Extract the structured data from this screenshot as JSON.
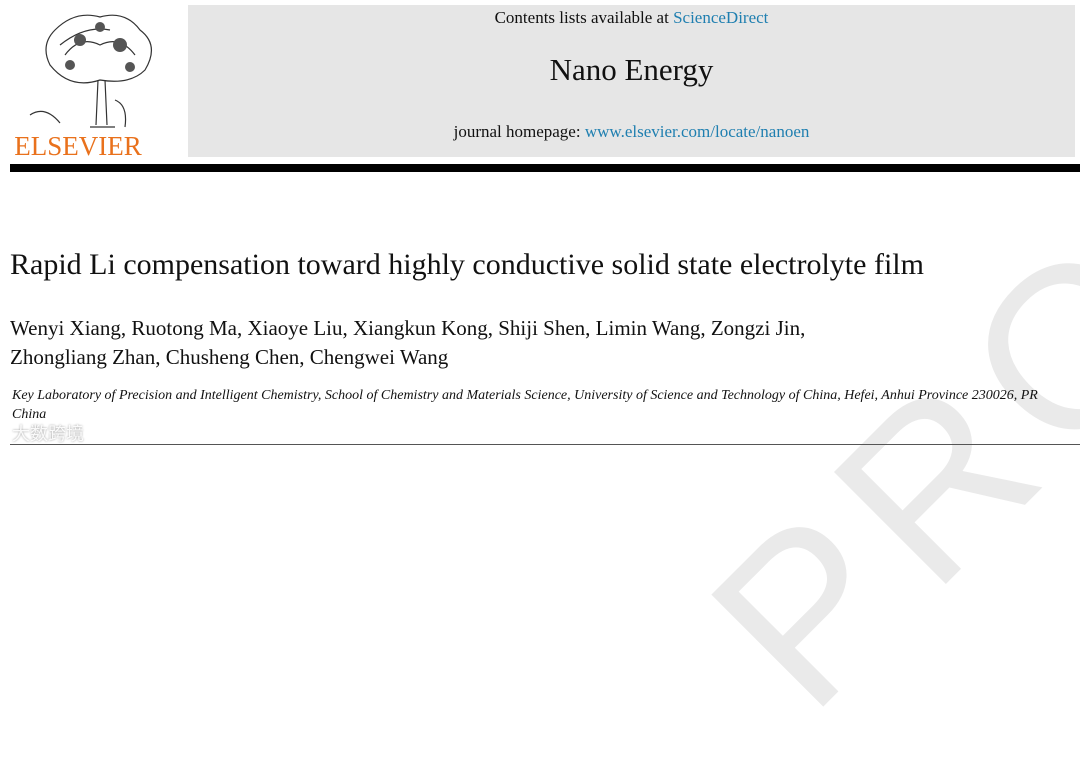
{
  "header": {
    "contents_prefix": "Contents lists available at",
    "contents_link": "ScienceDirect",
    "journal": "Nano Energy",
    "homepage_prefix": "journal homepage:",
    "homepage_link": "www.elsevier.com/locate/nanoen",
    "publisher": "ELSEVIER"
  },
  "article": {
    "title": "Rapid Li compensation toward highly conductive solid state electrolyte film",
    "authors": [
      "Wenyi Xiang, Ruotong Ma, Xiaoye Liu, Xiangkun Kong, Shiji Shen, Limin Wang, Zongzi Jin,",
      "Zhongliang Zhan, Chusheng Chen, Chengwei Wang"
    ],
    "affiliation": "Key Laboratory of Precision and Intelligent Chemistry, School of Chemistry and Materials Science, University of Science and Technology of China, Hefei, Anhui Province 230026, PR China"
  },
  "watermark": "PROOF",
  "badge": "大数跨境"
}
